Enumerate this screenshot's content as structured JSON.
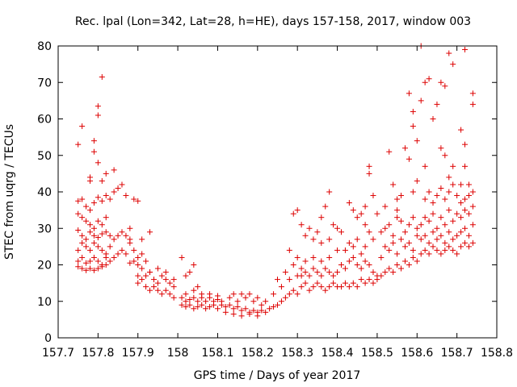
{
  "chart_data": {
    "type": "scatter",
    "title": "Rec. lpal (Lon=342, Lat=28, h=HE), days 157-158, 2017, window 003",
    "xlabel": "GPS time / Days of year 2017",
    "ylabel": "STEC from uqrg / TECUs",
    "xlim": [
      157.7,
      158.8
    ],
    "ylim": [
      0,
      80
    ],
    "xticks": [
      157.7,
      157.8,
      157.9,
      158.0,
      158.1,
      158.2,
      158.3,
      158.4,
      158.5,
      158.6,
      158.7,
      158.8
    ],
    "xtick_labels": [
      "157.7",
      "157.8",
      "157.9",
      "158",
      "158.1",
      "158.2",
      "158.3",
      "158.4",
      "158.5",
      "158.6",
      "158.7",
      "158.8"
    ],
    "yticks": [
      0,
      10,
      20,
      30,
      40,
      50,
      60,
      70,
      80
    ],
    "ytick_labels": [
      "0",
      "10",
      "20",
      "30",
      "40",
      "50",
      "60",
      "70",
      "80"
    ],
    "grid": false,
    "legend": "none",
    "marker": "+",
    "color": "#dd0000",
    "points": [
      [
        157.75,
        53
      ],
      [
        157.76,
        58
      ],
      [
        157.78,
        44
      ],
      [
        157.79,
        51
      ],
      [
        157.79,
        54
      ],
      [
        157.8,
        48
      ],
      [
        157.8,
        63.5
      ],
      [
        157.8,
        61
      ],
      [
        157.81,
        71.5
      ],
      [
        157.78,
        43
      ],
      [
        157.81,
        43
      ],
      [
        157.82,
        45
      ],
      [
        157.84,
        46
      ],
      [
        157.85,
        41
      ],
      [
        157.86,
        42
      ],
      [
        157.84,
        40
      ],
      [
        157.87,
        39
      ],
      [
        157.75,
        37.5
      ],
      [
        157.76,
        38
      ],
      [
        157.77,
        36
      ],
      [
        157.78,
        35
      ],
      [
        157.79,
        37
      ],
      [
        157.8,
        38.5
      ],
      [
        157.81,
        37.5
      ],
      [
        157.82,
        39
      ],
      [
        157.83,
        38
      ],
      [
        157.75,
        34
      ],
      [
        157.76,
        33
      ],
      [
        157.77,
        32
      ],
      [
        157.78,
        31
      ],
      [
        157.79,
        30
      ],
      [
        157.8,
        32
      ],
      [
        157.81,
        31
      ],
      [
        157.82,
        33
      ],
      [
        157.75,
        29.5
      ],
      [
        157.76,
        28
      ],
      [
        157.77,
        27
      ],
      [
        157.78,
        29
      ],
      [
        157.79,
        28
      ],
      [
        157.8,
        27.5
      ],
      [
        157.81,
        28.5
      ],
      [
        157.82,
        29
      ],
      [
        157.83,
        28
      ],
      [
        157.84,
        27
      ],
      [
        157.85,
        28
      ],
      [
        157.86,
        29
      ],
      [
        157.87,
        28
      ],
      [
        157.88,
        27
      ],
      [
        157.75,
        24
      ],
      [
        157.76,
        26
      ],
      [
        157.77,
        25
      ],
      [
        157.78,
        24
      ],
      [
        157.79,
        26
      ],
      [
        157.8,
        25
      ],
      [
        157.81,
        24
      ],
      [
        157.82,
        23
      ],
      [
        157.83,
        25
      ],
      [
        157.84,
        22
      ],
      [
        157.85,
        23
      ],
      [
        157.86,
        24
      ],
      [
        157.87,
        23
      ],
      [
        157.75,
        21
      ],
      [
        157.76,
        22
      ],
      [
        157.77,
        20.5
      ],
      [
        157.78,
        21
      ],
      [
        157.79,
        22
      ],
      [
        157.8,
        21
      ],
      [
        157.81,
        20
      ],
      [
        157.82,
        22
      ],
      [
        157.83,
        21
      ],
      [
        157.75,
        19.5
      ],
      [
        157.76,
        19
      ],
      [
        157.77,
        18.5
      ],
      [
        157.78,
        19
      ],
      [
        157.79,
        18.5
      ],
      [
        157.8,
        19
      ],
      [
        157.81,
        19.5
      ],
      [
        157.82,
        20
      ],
      [
        157.88,
        26
      ],
      [
        157.89,
        24
      ],
      [
        157.9,
        22
      ],
      [
        157.91,
        23
      ],
      [
        157.89,
        21
      ],
      [
        157.9,
        20
      ],
      [
        157.92,
        21
      ],
      [
        157.88,
        20.5
      ],
      [
        157.89,
        38
      ],
      [
        157.9,
        37.5
      ],
      [
        157.93,
        29
      ],
      [
        157.88,
        30
      ],
      [
        157.91,
        27
      ],
      [
        157.9,
        17
      ],
      [
        157.91,
        16
      ],
      [
        157.92,
        17
      ],
      [
        157.93,
        18
      ],
      [
        157.94,
        16
      ],
      [
        157.95,
        15
      ],
      [
        157.96,
        17
      ],
      [
        157.97,
        16
      ],
      [
        157.98,
        15
      ],
      [
        157.99,
        14
      ],
      [
        157.9,
        15
      ],
      [
        157.92,
        14
      ],
      [
        157.93,
        13
      ],
      [
        157.94,
        14
      ],
      [
        157.95,
        13
      ],
      [
        157.96,
        12
      ],
      [
        157.97,
        13
      ],
      [
        157.98,
        12
      ],
      [
        157.99,
        11
      ],
      [
        157.91,
        19
      ],
      [
        157.93,
        18
      ],
      [
        157.95,
        19
      ],
      [
        157.97,
        18
      ],
      [
        157.99,
        16
      ],
      [
        158.01,
        22
      ],
      [
        158.02,
        17
      ],
      [
        158.03,
        18
      ],
      [
        158.04,
        20
      ],
      [
        158.05,
        14
      ],
      [
        158.01,
        11
      ],
      [
        158.02,
        10
      ],
      [
        158.03,
        10.5
      ],
      [
        158.04,
        11
      ],
      [
        158.05,
        10
      ],
      [
        158.06,
        11
      ],
      [
        158.07,
        10
      ],
      [
        158.08,
        11
      ],
      [
        158.09,
        10
      ],
      [
        158.1,
        10.5
      ],
      [
        158.01,
        9
      ],
      [
        158.02,
        8.5
      ],
      [
        158.03,
        9
      ],
      [
        158.04,
        8
      ],
      [
        158.05,
        8.5
      ],
      [
        158.06,
        9
      ],
      [
        158.07,
        8
      ],
      [
        158.08,
        8.5
      ],
      [
        158.09,
        9
      ],
      [
        158.1,
        8
      ],
      [
        158.02,
        12
      ],
      [
        158.04,
        13
      ],
      [
        158.06,
        12
      ],
      [
        158.08,
        12
      ],
      [
        158.1,
        11.5
      ],
      [
        158.11,
        9
      ],
      [
        158.12,
        8.5
      ],
      [
        158.13,
        9
      ],
      [
        158.14,
        8
      ],
      [
        158.15,
        8.5
      ],
      [
        158.16,
        7.5
      ],
      [
        158.17,
        8
      ],
      [
        158.18,
        7
      ],
      [
        158.19,
        7.5
      ],
      [
        158.2,
        7
      ],
      [
        158.11,
        10
      ],
      [
        158.13,
        11
      ],
      [
        158.15,
        10
      ],
      [
        158.17,
        11
      ],
      [
        158.19,
        10
      ],
      [
        158.21,
        9
      ],
      [
        158.12,
        7
      ],
      [
        158.14,
        6.5
      ],
      [
        158.16,
        6
      ],
      [
        158.18,
        6.5
      ],
      [
        158.2,
        6
      ],
      [
        158.14,
        12
      ],
      [
        158.16,
        12
      ],
      [
        158.18,
        12
      ],
      [
        158.2,
        11
      ],
      [
        158.21,
        7.5
      ],
      [
        158.22,
        7
      ],
      [
        158.23,
        8
      ],
      [
        158.24,
        8.5
      ],
      [
        158.25,
        9
      ],
      [
        158.26,
        10
      ],
      [
        158.27,
        11
      ],
      [
        158.28,
        12
      ],
      [
        158.29,
        13
      ],
      [
        158.3,
        12
      ],
      [
        158.22,
        10
      ],
      [
        158.24,
        12
      ],
      [
        158.26,
        14
      ],
      [
        158.28,
        16
      ],
      [
        158.3,
        17
      ],
      [
        158.25,
        16
      ],
      [
        158.27,
        18
      ],
      [
        158.28,
        24
      ],
      [
        158.29,
        20
      ],
      [
        158.3,
        22
      ],
      [
        158.31,
        19
      ],
      [
        158.29,
        34
      ],
      [
        158.3,
        35
      ],
      [
        158.31,
        31
      ],
      [
        158.32,
        28
      ],
      [
        158.33,
        30
      ],
      [
        158.34,
        27
      ],
      [
        158.35,
        29
      ],
      [
        158.31,
        14
      ],
      [
        158.32,
        15
      ],
      [
        158.33,
        13
      ],
      [
        158.34,
        14
      ],
      [
        158.35,
        15
      ],
      [
        158.36,
        14
      ],
      [
        158.37,
        13
      ],
      [
        158.38,
        14
      ],
      [
        158.39,
        15
      ],
      [
        158.4,
        14
      ],
      [
        158.31,
        17
      ],
      [
        158.32,
        18
      ],
      [
        158.33,
        17
      ],
      [
        158.34,
        19
      ],
      [
        158.35,
        18
      ],
      [
        158.36,
        17
      ],
      [
        158.37,
        19
      ],
      [
        158.38,
        18
      ],
      [
        158.39,
        17
      ],
      [
        158.4,
        18
      ],
      [
        158.32,
        21
      ],
      [
        158.34,
        22
      ],
      [
        158.36,
        21
      ],
      [
        158.38,
        22
      ],
      [
        158.4,
        24
      ],
      [
        158.36,
        26
      ],
      [
        158.38,
        27
      ],
      [
        158.37,
        36
      ],
      [
        158.38,
        40
      ],
      [
        158.36,
        33
      ],
      [
        158.39,
        31
      ],
      [
        158.4,
        30
      ],
      [
        158.41,
        29
      ],
      [
        158.41,
        14
      ],
      [
        158.42,
        15
      ],
      [
        158.43,
        14
      ],
      [
        158.44,
        15
      ],
      [
        158.45,
        14
      ],
      [
        158.46,
        16
      ],
      [
        158.47,
        15
      ],
      [
        158.48,
        16
      ],
      [
        158.49,
        15
      ],
      [
        158.5,
        16
      ],
      [
        158.41,
        20
      ],
      [
        158.42,
        19
      ],
      [
        158.43,
        21
      ],
      [
        158.44,
        22
      ],
      [
        158.45,
        20
      ],
      [
        158.46,
        19
      ],
      [
        158.47,
        21
      ],
      [
        158.48,
        20
      ],
      [
        158.49,
        18
      ],
      [
        158.5,
        17
      ],
      [
        158.42,
        24
      ],
      [
        158.43,
        26
      ],
      [
        158.44,
        25
      ],
      [
        158.45,
        27
      ],
      [
        158.46,
        23
      ],
      [
        158.47,
        25
      ],
      [
        158.48,
        29
      ],
      [
        158.49,
        27
      ],
      [
        158.43,
        37
      ],
      [
        158.44,
        35
      ],
      [
        158.45,
        33
      ],
      [
        158.46,
        34
      ],
      [
        158.47,
        36
      ],
      [
        158.48,
        47
      ],
      [
        158.48,
        45
      ],
      [
        158.49,
        39
      ],
      [
        158.5,
        34
      ],
      [
        158.47,
        31
      ],
      [
        158.51,
        17
      ],
      [
        158.52,
        18
      ],
      [
        158.53,
        19
      ],
      [
        158.54,
        18
      ],
      [
        158.55,
        20
      ],
      [
        158.56,
        19
      ],
      [
        158.57,
        21
      ],
      [
        158.58,
        20
      ],
      [
        158.59,
        22
      ],
      [
        158.6,
        21
      ],
      [
        158.51,
        22
      ],
      [
        158.52,
        25
      ],
      [
        158.53,
        24
      ],
      [
        158.54,
        26
      ],
      [
        158.55,
        23
      ],
      [
        158.56,
        27
      ],
      [
        158.57,
        25
      ],
      [
        158.58,
        26
      ],
      [
        158.59,
        24
      ],
      [
        158.6,
        28
      ],
      [
        158.51,
        29
      ],
      [
        158.52,
        30
      ],
      [
        158.53,
        31
      ],
      [
        158.54,
        28
      ],
      [
        158.55,
        33
      ],
      [
        158.56,
        32
      ],
      [
        158.57,
        29
      ],
      [
        158.58,
        31
      ],
      [
        158.59,
        33
      ],
      [
        158.6,
        30
      ],
      [
        158.52,
        36
      ],
      [
        158.53,
        51
      ],
      [
        158.54,
        42
      ],
      [
        158.55,
        38
      ],
      [
        158.56,
        39
      ],
      [
        158.57,
        52
      ],
      [
        158.58,
        49
      ],
      [
        158.59,
        40
      ],
      [
        158.6,
        43
      ],
      [
        158.55,
        35
      ],
      [
        158.59,
        62
      ],
      [
        158.59,
        58
      ],
      [
        158.58,
        67
      ],
      [
        158.6,
        54
      ],
      [
        158.61,
        80
      ],
      [
        158.62,
        47
      ],
      [
        158.61,
        65
      ],
      [
        158.61,
        23
      ],
      [
        158.62,
        24
      ],
      [
        158.63,
        23
      ],
      [
        158.64,
        25
      ],
      [
        158.65,
        24
      ],
      [
        158.66,
        23
      ],
      [
        158.67,
        24
      ],
      [
        158.68,
        25
      ],
      [
        158.69,
        24
      ],
      [
        158.7,
        23
      ],
      [
        158.61,
        27
      ],
      [
        158.62,
        28
      ],
      [
        158.63,
        26
      ],
      [
        158.64,
        29
      ],
      [
        158.65,
        27
      ],
      [
        158.66,
        28
      ],
      [
        158.67,
        26
      ],
      [
        158.68,
        29
      ],
      [
        158.69,
        27
      ],
      [
        158.7,
        28
      ],
      [
        158.61,
        31
      ],
      [
        158.62,
        33
      ],
      [
        158.63,
        32
      ],
      [
        158.64,
        34
      ],
      [
        158.65,
        30
      ],
      [
        158.66,
        33
      ],
      [
        158.67,
        31
      ],
      [
        158.68,
        35
      ],
      [
        158.69,
        32
      ],
      [
        158.7,
        34
      ],
      [
        158.62,
        38
      ],
      [
        158.63,
        40
      ],
      [
        158.64,
        37
      ],
      [
        158.65,
        39
      ],
      [
        158.66,
        41
      ],
      [
        158.67,
        38
      ],
      [
        158.68,
        40
      ],
      [
        158.69,
        42
      ],
      [
        158.7,
        39
      ],
      [
        158.62,
        70
      ],
      [
        158.63,
        71
      ],
      [
        158.64,
        60
      ],
      [
        158.65,
        64
      ],
      [
        158.66,
        52
      ],
      [
        158.66,
        70
      ],
      [
        158.67,
        50
      ],
      [
        158.68,
        78
      ],
      [
        158.69,
        75
      ],
      [
        158.69,
        47
      ],
      [
        158.67,
        69
      ],
      [
        158.68,
        44
      ],
      [
        158.71,
        25
      ],
      [
        158.72,
        26
      ],
      [
        158.73,
        25
      ],
      [
        158.74,
        26
      ],
      [
        158.71,
        29
      ],
      [
        158.72,
        30
      ],
      [
        158.73,
        28
      ],
      [
        158.74,
        31
      ],
      [
        158.71,
        33
      ],
      [
        158.72,
        35
      ],
      [
        158.73,
        34
      ],
      [
        158.74,
        36
      ],
      [
        158.71,
        37
      ],
      [
        158.72,
        38
      ],
      [
        158.73,
        39
      ],
      [
        158.74,
        40
      ],
      [
        158.71,
        42
      ],
      [
        158.72,
        47
      ],
      [
        158.72,
        53
      ],
      [
        158.71,
        57
      ],
      [
        158.72,
        79
      ],
      [
        158.74,
        67
      ],
      [
        158.74,
        64
      ],
      [
        158.73,
        42
      ]
    ]
  }
}
